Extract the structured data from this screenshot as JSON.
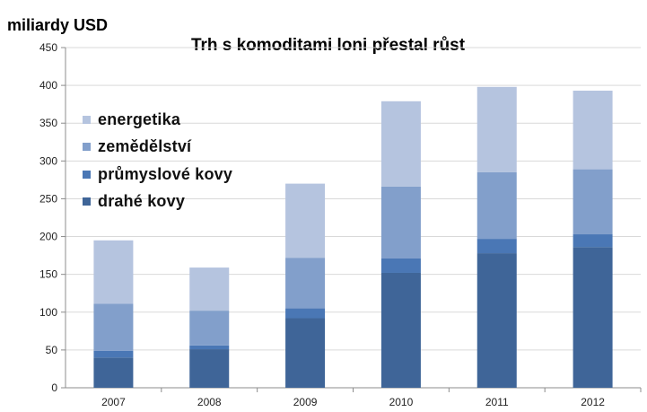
{
  "chart_data": {
    "type": "bar",
    "stacked": true,
    "title": "Trh s komoditami loni přestal růst",
    "ylabel": "miliardy USD",
    "xlabel": "",
    "categories": [
      "2007",
      "2008",
      "2009",
      "2010",
      "2011",
      "2012"
    ],
    "ylim": [
      0,
      450
    ],
    "yticks": [
      0,
      50,
      100,
      150,
      200,
      250,
      300,
      350,
      400,
      450
    ],
    "grid": true,
    "legend_position": "top-left",
    "series": [
      {
        "name": "drahé kovy",
        "color": "#3f6598",
        "values": [
          40,
          51,
          92,
          152,
          178,
          186
        ]
      },
      {
        "name": "průmyslové kovy",
        "color": "#4a77b5",
        "values": [
          9,
          5,
          13,
          19,
          19,
          17
        ]
      },
      {
        "name": "zemědělství",
        "color": "#829fcb",
        "values": [
          62,
          46,
          67,
          95,
          88,
          86
        ]
      },
      {
        "name": "energetika",
        "color": "#b5c4df",
        "values": [
          84,
          57,
          98,
          113,
          113,
          104
        ]
      }
    ],
    "legend_order": [
      "energetika",
      "zemědělství",
      "průmyslové kovy",
      "drahé kovy"
    ]
  }
}
